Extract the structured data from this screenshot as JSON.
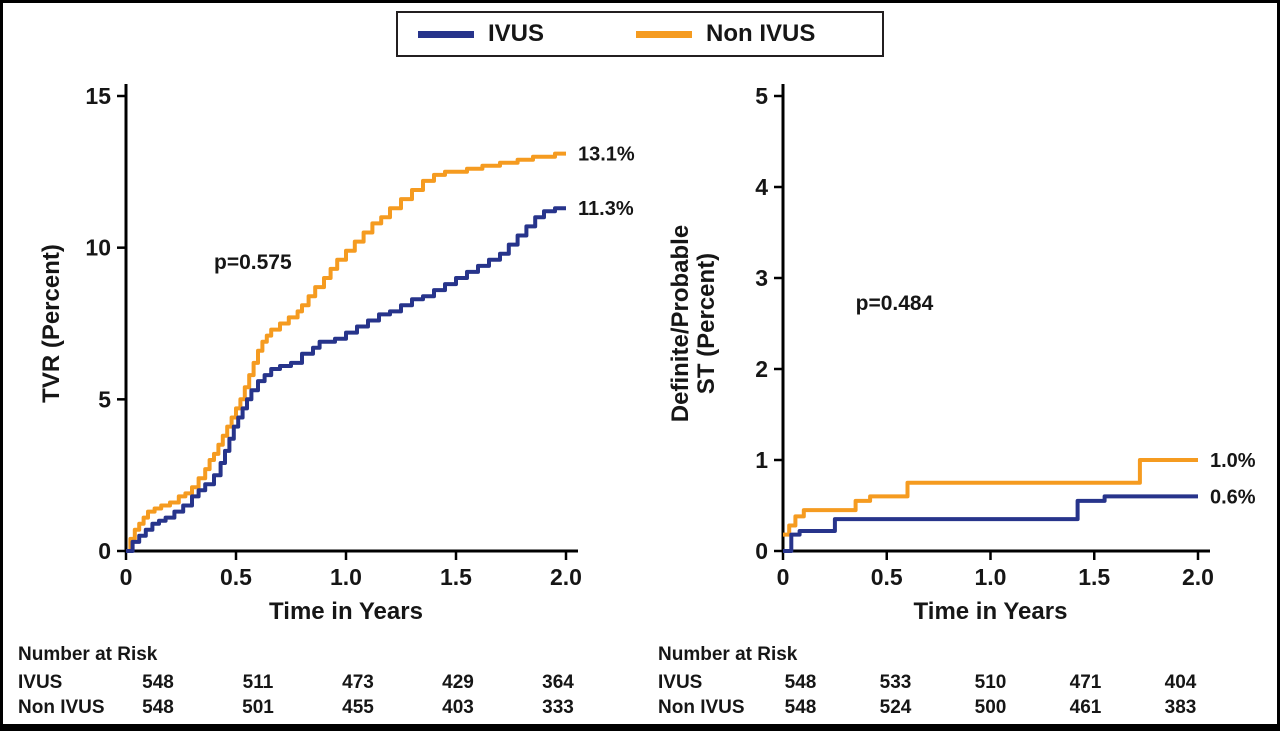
{
  "legend": {
    "items": [
      {
        "label": "IVUS",
        "color": "#27348b"
      },
      {
        "label": "Non IVUS",
        "color": "#f59b20"
      }
    ]
  },
  "chart_data": [
    {
      "type": "line",
      "step": true,
      "title": "",
      "xlabel": "Time in Years",
      "ylabel": "TVR (Percent)",
      "xlim": [
        0,
        2
      ],
      "ylim": [
        0,
        15
      ],
      "xticks": [
        "0",
        "0.5",
        "1.0",
        "1.5",
        "2.0"
      ],
      "xtick_values": [
        0,
        0.5,
        1.0,
        1.5,
        2.0
      ],
      "yticks": [
        "0",
        "5",
        "10",
        "15"
      ],
      "ytick_values": [
        0,
        5,
        10,
        15
      ],
      "annotation": {
        "text": "p=0.575",
        "x": 0.4,
        "y": 9.3
      },
      "legend_position": "top",
      "grid": false,
      "series": [
        {
          "name": "Non IVUS",
          "color": "#f59b20",
          "end_label": "13.1%",
          "points": [
            [
              0,
              0
            ],
            [
              0.02,
              0.4
            ],
            [
              0.04,
              0.7
            ],
            [
              0.06,
              0.9
            ],
            [
              0.08,
              1.1
            ],
            [
              0.1,
              1.3
            ],
            [
              0.13,
              1.4
            ],
            [
              0.16,
              1.5
            ],
            [
              0.2,
              1.6
            ],
            [
              0.24,
              1.8
            ],
            [
              0.27,
              1.9
            ],
            [
              0.3,
              2.1
            ],
            [
              0.33,
              2.4
            ],
            [
              0.36,
              2.7
            ],
            [
              0.38,
              3.0
            ],
            [
              0.4,
              3.2
            ],
            [
              0.42,
              3.5
            ],
            [
              0.44,
              3.8
            ],
            [
              0.46,
              4.1
            ],
            [
              0.48,
              4.4
            ],
            [
              0.5,
              4.7
            ],
            [
              0.52,
              5.0
            ],
            [
              0.54,
              5.4
            ],
            [
              0.56,
              5.8
            ],
            [
              0.58,
              6.2
            ],
            [
              0.6,
              6.6
            ],
            [
              0.62,
              6.9
            ],
            [
              0.64,
              7.1
            ],
            [
              0.66,
              7.3
            ],
            [
              0.7,
              7.5
            ],
            [
              0.74,
              7.7
            ],
            [
              0.78,
              7.9
            ],
            [
              0.8,
              8.1
            ],
            [
              0.83,
              8.4
            ],
            [
              0.86,
              8.7
            ],
            [
              0.9,
              9.0
            ],
            [
              0.93,
              9.3
            ],
            [
              0.96,
              9.6
            ],
            [
              1.0,
              9.9
            ],
            [
              1.04,
              10.2
            ],
            [
              1.08,
              10.5
            ],
            [
              1.12,
              10.8
            ],
            [
              1.16,
              11.0
            ],
            [
              1.2,
              11.3
            ],
            [
              1.25,
              11.6
            ],
            [
              1.3,
              11.9
            ],
            [
              1.35,
              12.2
            ],
            [
              1.4,
              12.4
            ],
            [
              1.45,
              12.5
            ],
            [
              1.55,
              12.6
            ],
            [
              1.62,
              12.7
            ],
            [
              1.7,
              12.8
            ],
            [
              1.78,
              12.9
            ],
            [
              1.85,
              13.0
            ],
            [
              1.95,
              13.1
            ],
            [
              2.0,
              13.1
            ]
          ]
        },
        {
          "name": "IVUS",
          "color": "#27348b",
          "end_label": "11.3%",
          "points": [
            [
              0,
              0
            ],
            [
              0.03,
              0.3
            ],
            [
              0.06,
              0.5
            ],
            [
              0.09,
              0.7
            ],
            [
              0.12,
              0.9
            ],
            [
              0.15,
              1.0
            ],
            [
              0.18,
              1.1
            ],
            [
              0.22,
              1.3
            ],
            [
              0.26,
              1.5
            ],
            [
              0.3,
              1.8
            ],
            [
              0.33,
              2.0
            ],
            [
              0.36,
              2.2
            ],
            [
              0.4,
              2.5
            ],
            [
              0.43,
              2.9
            ],
            [
              0.45,
              3.3
            ],
            [
              0.47,
              3.7
            ],
            [
              0.49,
              4.1
            ],
            [
              0.51,
              4.4
            ],
            [
              0.53,
              4.7
            ],
            [
              0.55,
              5.0
            ],
            [
              0.57,
              5.3
            ],
            [
              0.6,
              5.6
            ],
            [
              0.63,
              5.8
            ],
            [
              0.66,
              6.0
            ],
            [
              0.7,
              6.1
            ],
            [
              0.75,
              6.2
            ],
            [
              0.8,
              6.5
            ],
            [
              0.85,
              6.7
            ],
            [
              0.88,
              6.9
            ],
            [
              0.95,
              7.0
            ],
            [
              1.0,
              7.2
            ],
            [
              1.05,
              7.4
            ],
            [
              1.1,
              7.6
            ],
            [
              1.15,
              7.8
            ],
            [
              1.2,
              7.9
            ],
            [
              1.25,
              8.1
            ],
            [
              1.3,
              8.3
            ],
            [
              1.35,
              8.4
            ],
            [
              1.4,
              8.6
            ],
            [
              1.45,
              8.8
            ],
            [
              1.5,
              9.0
            ],
            [
              1.55,
              9.2
            ],
            [
              1.6,
              9.4
            ],
            [
              1.65,
              9.6
            ],
            [
              1.7,
              9.8
            ],
            [
              1.74,
              10.1
            ],
            [
              1.78,
              10.4
            ],
            [
              1.82,
              10.7
            ],
            [
              1.86,
              11.0
            ],
            [
              1.9,
              11.2
            ],
            [
              1.95,
              11.3
            ],
            [
              2.0,
              11.3
            ]
          ]
        }
      ]
    },
    {
      "type": "line",
      "step": true,
      "title": "",
      "xlabel": "Time in Years",
      "ylabel": "Definite/Probable\nST (Percent)",
      "xlim": [
        0,
        2
      ],
      "ylim": [
        0,
        5
      ],
      "xticks": [
        "0",
        "0.5",
        "1.0",
        "1.5",
        "2.0"
      ],
      "xtick_values": [
        0,
        0.5,
        1.0,
        1.5,
        2.0
      ],
      "yticks": [
        "0",
        "1",
        "2",
        "3",
        "4",
        "5"
      ],
      "ytick_values": [
        0,
        1,
        2,
        3,
        4,
        5
      ],
      "annotation": {
        "text": "p=0.484",
        "x": 0.35,
        "y": 2.65
      },
      "legend_position": "top",
      "grid": false,
      "series": [
        {
          "name": "Non IVUS",
          "color": "#f59b20",
          "end_label": "1.0%",
          "points": [
            [
              0,
              0.18
            ],
            [
              0.03,
              0.28
            ],
            [
              0.06,
              0.38
            ],
            [
              0.1,
              0.45
            ],
            [
              0.35,
              0.55
            ],
            [
              0.42,
              0.6
            ],
            [
              0.6,
              0.75
            ],
            [
              1.72,
              1.0
            ],
            [
              2.0,
              1.0
            ]
          ]
        },
        {
          "name": "IVUS",
          "color": "#27348b",
          "end_label": "0.6%",
          "points": [
            [
              0,
              0
            ],
            [
              0.04,
              0.18
            ],
            [
              0.08,
              0.22
            ],
            [
              0.25,
              0.35
            ],
            [
              1.42,
              0.55
            ],
            [
              1.55,
              0.6
            ],
            [
              2.0,
              0.6
            ]
          ]
        }
      ]
    }
  ],
  "risk_tables": [
    {
      "title": "Number at Risk",
      "rows": [
        {
          "label": "IVUS",
          "values": [
            "548",
            "511",
            "473",
            "429",
            "364"
          ]
        },
        {
          "label": "Non IVUS",
          "values": [
            "548",
            "501",
            "455",
            "403",
            "333"
          ]
        }
      ]
    },
    {
      "title": "Number at Risk",
      "rows": [
        {
          "label": "IVUS",
          "values": [
            "548",
            "533",
            "510",
            "471",
            "404"
          ]
        },
        {
          "label": "Non IVUS",
          "values": [
            "548",
            "524",
            "500",
            "461",
            "383"
          ]
        }
      ]
    }
  ]
}
